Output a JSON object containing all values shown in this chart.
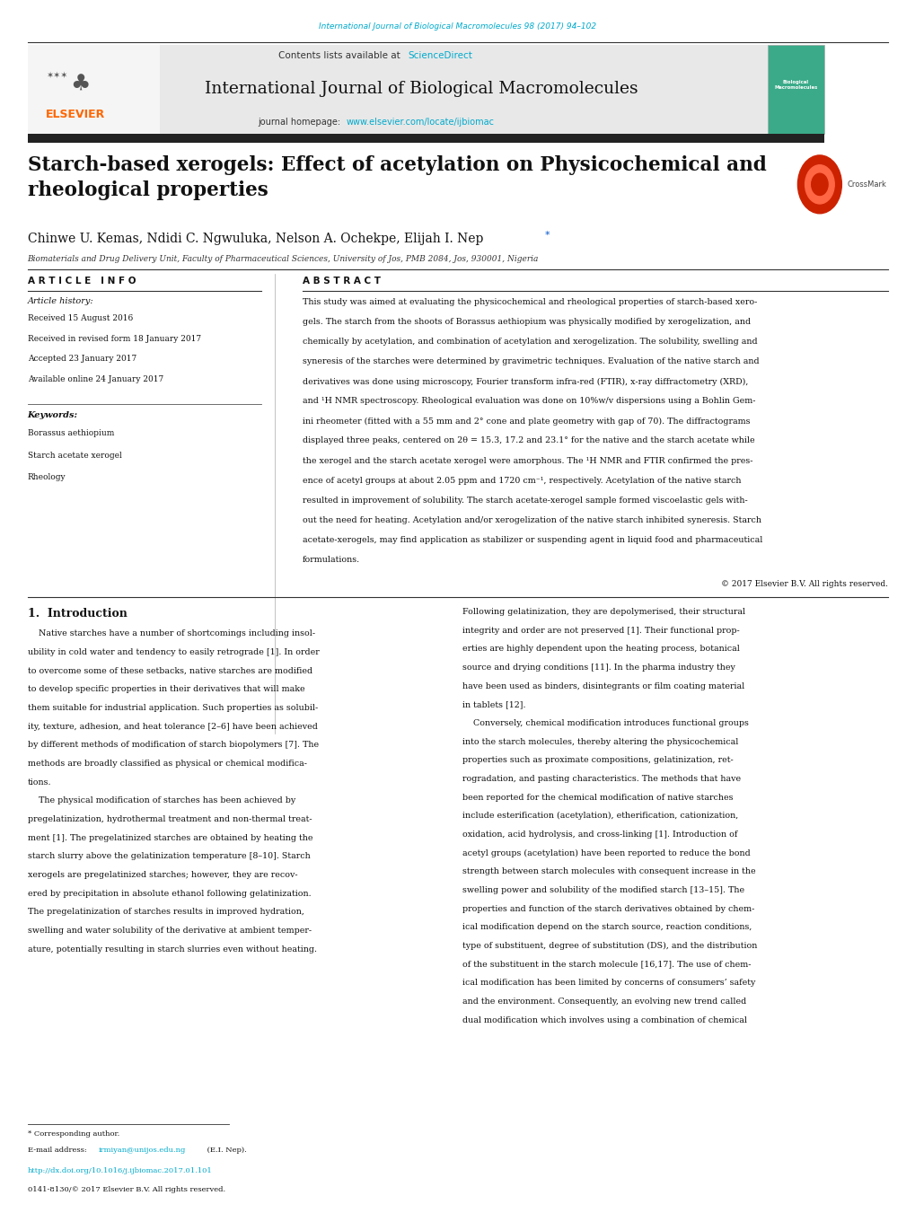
{
  "page_width": 10.2,
  "page_height": 13.51,
  "bg_color": "#ffffff",
  "journal_url_text": "International Journal of Biological Macromolecules 98 (2017) 94–102",
  "journal_url_color": "#00aacc",
  "contents_text": "Contents lists available at ",
  "sciencedirect_text": "ScienceDirect",
  "sciencedirect_color": "#00aacc",
  "journal_name": "International Journal of Biological Macromolecules",
  "journal_homepage_text": "journal homepage: ",
  "journal_homepage_url": "www.elsevier.com/locate/ijbiomac",
  "journal_homepage_url_color": "#00aacc",
  "header_bg": "#e8e8e8",
  "dark_bar_color": "#222222",
  "elsevier_color": "#ff6600",
  "article_title": "Starch-based xerogels: Effect of acetylation on Physicochemical and\nrheological properties",
  "authors": "Chinwe U. Kemas, Ndidi C. Ngwuluka, Nelson A. Ochekpe, Elijah I. Nep",
  "affiliation": "Biomaterials and Drug Delivery Unit, Faculty of Pharmaceutical Sciences, University of Jos, PMB 2084, Jos, 930001, Nigeria",
  "article_info_title": "A R T I C L E   I N F O",
  "abstract_title": "A B S T R A C T",
  "article_history_label": "Article history:",
  "received_text": "Received 15 August 2016",
  "received_revised_text": "Received in revised form 18 January 2017",
  "accepted_text": "Accepted 23 January 2017",
  "available_text": "Available online 24 January 2017",
  "keywords_label": "Keywords:",
  "keyword1": "Borassus aethiopium",
  "keyword2": "Starch acetate xerogel",
  "keyword3": "Rheology",
  "copyright_text": "© 2017 Elsevier B.V. All rights reserved.",
  "section1_title": "1.  Introduction",
  "footer_star_text": "* Corresponding author.",
  "footer_email_label": "E-mail address: ",
  "footer_email_link": "irmiyan@unijos.edu.ng",
  "footer_email_suffix": " (E.I. Nep).",
  "footer_email_color": "#00aacc",
  "footer_doi": "http://dx.doi.org/10.1016/j.ijbiomac.2017.01.101",
  "footer_doi_color": "#00aacc",
  "footer_issn": "0141-8130/© 2017 Elsevier B.V. All rights reserved.",
  "abstract_lines": [
    "This study was aimed at evaluating the physicochemical and rheological properties of starch-based xero-",
    "gels. The starch from the shoots of Borassus aethiopium was physically modified by xerogelization, and",
    "chemically by acetylation, and combination of acetylation and xerogelization. The solubility, swelling and",
    "syneresis of the starches were determined by gravimetric techniques. Evaluation of the native starch and",
    "derivatives was done using microscopy, Fourier transform infra-red (FTIR), x-ray diffractometry (XRD),",
    "and ¹H NMR spectroscopy. Rheological evaluation was done on 10%w/v dispersions using a Bohlin Gem-",
    "ini rheometer (fitted with a 55 mm and 2° cone and plate geometry with gap of 70). The diffractograms",
    "displayed three peaks, centered on 2θ = 15.3, 17.2 and 23.1° for the native and the starch acetate while",
    "the xerogel and the starch acetate xerogel were amorphous. The ¹H NMR and FTIR confirmed the pres-",
    "ence of acetyl groups at about 2.05 ppm and 1720 cm⁻¹, respectively. Acetylation of the native starch",
    "resulted in improvement of solubility. The starch acetate-xerogel sample formed viscoelastic gels with-",
    "out the need for heating. Acetylation and/or xerogelization of the native starch inhibited syneresis. Starch",
    "acetate-xerogels, may find application as stabilizer or suspending agent in liquid food and pharmaceutical",
    "formulations."
  ],
  "intro_left_lines": [
    "    Native starches have a number of shortcomings including insol-",
    "ubility in cold water and tendency to easily retrograde [1]. In order",
    "to overcome some of these setbacks, native starches are modified",
    "to develop specific properties in their derivatives that will make",
    "them suitable for industrial application. Such properties as solubil-",
    "ity, texture, adhesion, and heat tolerance [2–6] have been achieved",
    "by different methods of modification of starch biopolymers [7]. The",
    "methods are broadly classified as physical or chemical modifica-",
    "tions.",
    "    The physical modification of starches has been achieved by",
    "pregelatinization, hydrothermal treatment and non-thermal treat-",
    "ment [1]. The pregelatinized starches are obtained by heating the",
    "starch slurry above the gelatinization temperature [8–10]. Starch",
    "xerogels are pregelatinized starches; however, they are recov-",
    "ered by precipitation in absolute ethanol following gelatinization.",
    "The pregelatinization of starches results in improved hydration,",
    "swelling and water solubility of the derivative at ambient temper-",
    "ature, potentially resulting in starch slurries even without heating."
  ],
  "intro_right_lines": [
    "Following gelatinization, they are depolymerised, their structural",
    "integrity and order are not preserved [1]. Their functional prop-",
    "erties are highly dependent upon the heating process, botanical",
    "source and drying conditions [11]. In the pharma industry they",
    "have been used as binders, disintegrants or film coating material",
    "in tablets [12].",
    "    Conversely, chemical modification introduces functional groups",
    "into the starch molecules, thereby altering the physicochemical",
    "properties such as proximate compositions, gelatinization, ret-",
    "rogradation, and pasting characteristics. The methods that have",
    "been reported for the chemical modification of native starches",
    "include esterification (acetylation), etherification, cationization,",
    "oxidation, acid hydrolysis, and cross-linking [1]. Introduction of",
    "acetyl groups (acetylation) have been reported to reduce the bond",
    "strength between starch molecules with consequent increase in the",
    "swelling power and solubility of the modified starch [13–15]. The",
    "properties and function of the starch derivatives obtained by chem-",
    "ical modification depend on the starch source, reaction conditions,",
    "type of substituent, degree of substitution (DS), and the distribution",
    "of the substituent in the starch molecule [16,17]. The use of chem-",
    "ical modification has been limited by concerns of consumers’ safety",
    "and the environment. Consequently, an evolving new trend called",
    "dual modification which involves using a combination of chemical"
  ]
}
